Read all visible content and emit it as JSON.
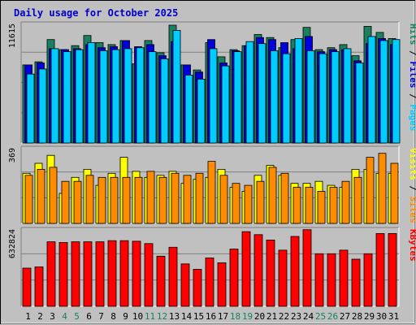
{
  "chart_data": [
    {
      "type": "bar",
      "title": "Daily usage for October 2025",
      "categories": [
        "1",
        "2",
        "3",
        "4",
        "5",
        "6",
        "7",
        "8",
        "9",
        "10",
        "11",
        "12",
        "13",
        "14",
        "15",
        "16",
        "17",
        "18",
        "19",
        "20",
        "21",
        "22",
        "23",
        "24",
        "25",
        "26",
        "27",
        "28",
        "29",
        "30",
        "31"
      ],
      "weekend_days": [
        "4",
        "5",
        "11",
        "12",
        "18",
        "19",
        "25",
        "26"
      ],
      "ymax_label": "11615",
      "ymax": 11615,
      "legend": [
        "Pages",
        "/",
        "Files",
        "/",
        "Hits"
      ],
      "series": [
        {
          "name": "Hits",
          "color": "#1a8060",
          "values": [
            7700,
            8000,
            10200,
            9200,
            9600,
            10600,
            9900,
            9700,
            10100,
            7800,
            10100,
            8900,
            11615,
            7700,
            7200,
            9900,
            8500,
            9200,
            9600,
            10700,
            10400,
            9400,
            10200,
            11400,
            9200,
            9400,
            9700,
            8600,
            11500,
            10900,
            10300
          ]
        },
        {
          "name": "Files",
          "color": "#0000dd",
          "values": [
            7700,
            7900,
            9300,
            9200,
            9300,
            9700,
            9400,
            9500,
            10100,
            9500,
            9700,
            8600,
            10000,
            7700,
            7000,
            10200,
            7900,
            9100,
            9600,
            10400,
            10200,
            9900,
            9300,
            10500,
            9000,
            9200,
            9200,
            8100,
            9800,
            10300,
            9700
          ]
        },
        {
          "name": "Pages",
          "color": "#00ccff",
          "values": [
            6800,
            7300,
            9300,
            9000,
            9200,
            9900,
            9100,
            9200,
            9300,
            9400,
            9000,
            8300,
            11100,
            6700,
            6300,
            9300,
            7600,
            9000,
            10000,
            9800,
            9100,
            8800,
            10300,
            9100,
            8800,
            9000,
            9300,
            7900,
            10500,
            10100,
            10200
          ]
        }
      ]
    },
    {
      "type": "bar",
      "ymax_label": "369",
      "ymax": 369,
      "legend": [
        "Sites",
        "/",
        "Visits"
      ],
      "series": [
        {
          "name": "Visits",
          "color": "#ffff00",
          "values": [
            250,
            300,
            340,
            150,
            230,
            270,
            190,
            250,
            330,
            260,
            230,
            240,
            260,
            200,
            220,
            230,
            270,
            180,
            160,
            240,
            290,
            240,
            200,
            200,
            210,
            190,
            180,
            270,
            270,
            250,
            250
          ]
        },
        {
          "name": "Sites",
          "color": "#ff8c00",
          "values": [
            240,
            270,
            280,
            210,
            210,
            240,
            230,
            230,
            230,
            230,
            260,
            230,
            250,
            240,
            250,
            310,
            240,
            200,
            190,
            210,
            280,
            250,
            180,
            180,
            160,
            180,
            210,
            230,
            330,
            350,
            300
          ]
        }
      ]
    },
    {
      "type": "bar",
      "ymax_label": "632824",
      "ymax": 632824,
      "legend": [
        "KBytes"
      ],
      "series": [
        {
          "name": "KBytes",
          "color": "#ff0000",
          "values": [
            320000,
            330000,
            540000,
            535000,
            540000,
            540000,
            540000,
            550000,
            550000,
            545000,
            525000,
            420000,
            495000,
            355000,
            310000,
            405000,
            365000,
            480000,
            625000,
            600000,
            555000,
            470000,
            585000,
            642000,
            440000,
            440000,
            470000,
            395000,
            440000,
            610000,
            610000
          ]
        }
      ]
    }
  ]
}
